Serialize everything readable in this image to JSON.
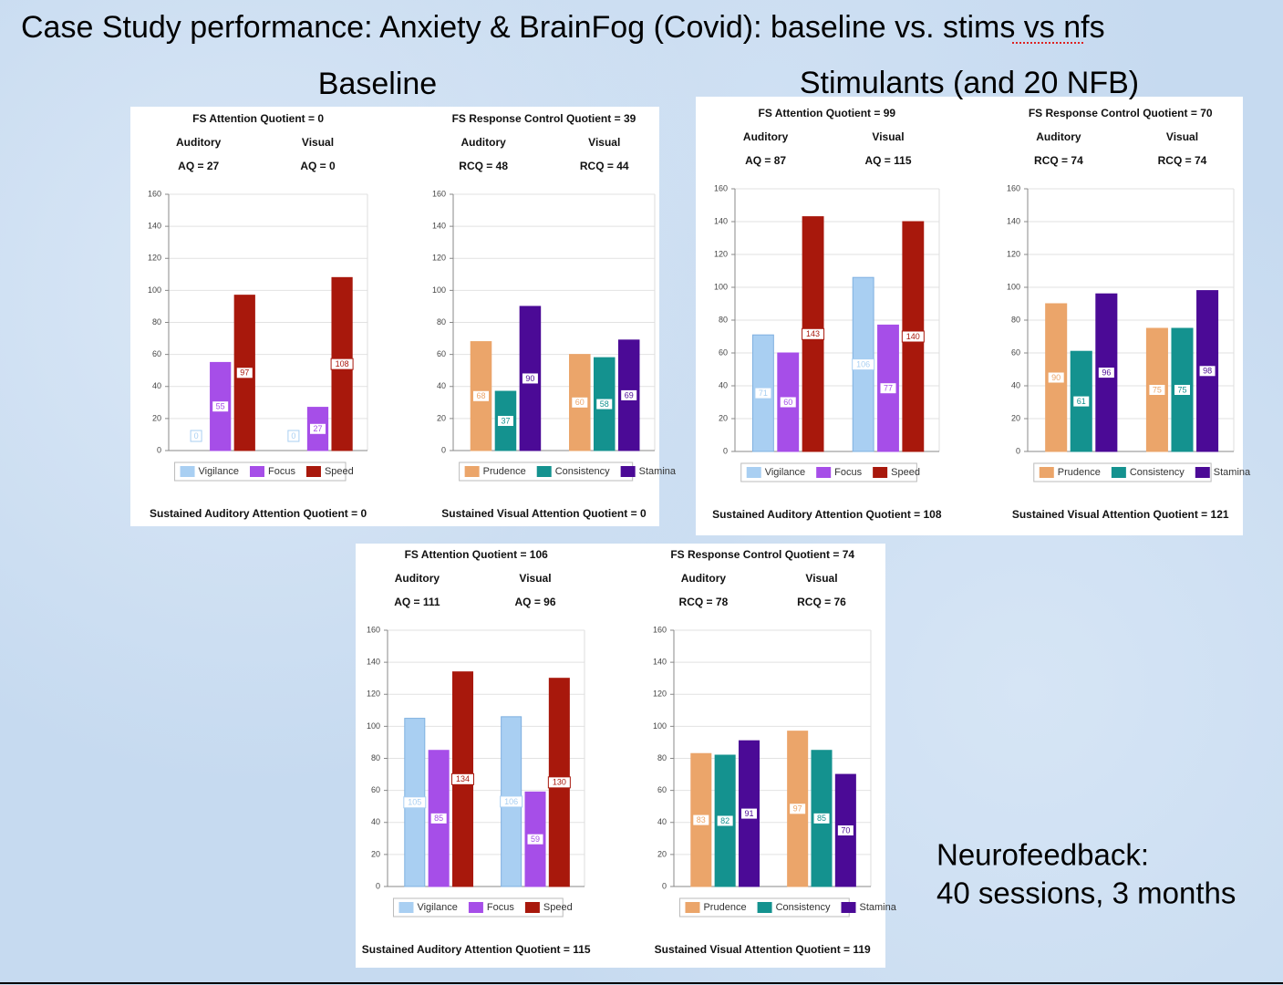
{
  "title": "Case Study performance:  Anxiety & BrainFog (Covid): baseline vs. stims vs nfs",
  "section_labels": [
    "Baseline",
    "Stimulants (and 20 NFB)"
  ],
  "note": [
    "Neurofeedback:",
    "40 sessions, 3 months"
  ],
  "chart_data": [
    {
      "type": "bar",
      "title": "FS Attention Quotient = 0",
      "group_labels": [
        "Auditory",
        "Visual"
      ],
      "group_scores": [
        "AQ = 27",
        "AQ = 0"
      ],
      "footer": "Sustained Auditory Attention Quotient = 0",
      "ylim": [
        0,
        160
      ],
      "yticks": [
        0,
        20,
        40,
        60,
        80,
        100,
        120,
        140,
        160
      ],
      "grid": true,
      "series": [
        {
          "name": "Vigilance",
          "color": "#a9cff2",
          "values": [
            0,
            0
          ]
        },
        {
          "name": "Focus",
          "color": "#a64ee8",
          "values": [
            55,
            27
          ]
        },
        {
          "name": "Speed",
          "color": "#a8180c",
          "values": [
            97,
            108
          ]
        }
      ]
    },
    {
      "type": "bar",
      "title": "FS Response Control Quotient = 39",
      "group_labels": [
        "Auditory",
        "Visual"
      ],
      "group_scores": [
        "RCQ = 48",
        "RCQ = 44"
      ],
      "footer": "Sustained Visual Attention Quotient = 0",
      "ylim": [
        0,
        160
      ],
      "yticks": [
        0,
        20,
        40,
        60,
        80,
        100,
        120,
        140,
        160
      ],
      "grid": true,
      "series": [
        {
          "name": "Prudence",
          "color": "#eba56a",
          "values": [
            68,
            60
          ]
        },
        {
          "name": "Consistency",
          "color": "#14928f",
          "values": [
            37,
            58
          ]
        },
        {
          "name": "Stamina",
          "color": "#4b0a96",
          "values": [
            90,
            69
          ]
        }
      ]
    },
    {
      "type": "bar",
      "title": "FS Attention Quotient = 99",
      "group_labels": [
        "Auditory",
        "Visual"
      ],
      "group_scores": [
        "AQ = 87",
        "AQ = 115"
      ],
      "footer": "Sustained Auditory Attention Quotient = 108",
      "ylim": [
        0,
        160
      ],
      "yticks": [
        0,
        20,
        40,
        60,
        80,
        100,
        120,
        140,
        160
      ],
      "grid": true,
      "series": [
        {
          "name": "Vigilance",
          "color": "#a9cff2",
          "values": [
            71,
            106
          ]
        },
        {
          "name": "Focus",
          "color": "#a64ee8",
          "values": [
            60,
            77
          ]
        },
        {
          "name": "Speed",
          "color": "#a8180c",
          "values": [
            143,
            140
          ]
        }
      ]
    },
    {
      "type": "bar",
      "title": "FS Response Control Quotient = 70",
      "group_labels": [
        "Auditory",
        "Visual"
      ],
      "group_scores": [
        "RCQ = 74",
        "RCQ = 74"
      ],
      "footer": "Sustained Visual Attention Quotient = 121",
      "ylim": [
        0,
        160
      ],
      "yticks": [
        0,
        20,
        40,
        60,
        80,
        100,
        120,
        140,
        160
      ],
      "grid": true,
      "series": [
        {
          "name": "Prudence",
          "color": "#eba56a",
          "values": [
            90,
            75
          ]
        },
        {
          "name": "Consistency",
          "color": "#14928f",
          "values": [
            61,
            75
          ]
        },
        {
          "name": "Stamina",
          "color": "#4b0a96",
          "values": [
            96,
            98
          ]
        }
      ]
    },
    {
      "type": "bar",
      "title": "FS Attention Quotient = 106",
      "group_labels": [
        "Auditory",
        "Visual"
      ],
      "group_scores": [
        "AQ = 111",
        "AQ = 96"
      ],
      "footer": "Sustained Auditory Attention Quotient = 115",
      "ylim": [
        0,
        160
      ],
      "yticks": [
        0,
        20,
        40,
        60,
        80,
        100,
        120,
        140,
        160
      ],
      "grid": true,
      "series": [
        {
          "name": "Vigilance",
          "color": "#a9cff2",
          "values": [
            105,
            106
          ]
        },
        {
          "name": "Focus",
          "color": "#a64ee8",
          "values": [
            85,
            59
          ]
        },
        {
          "name": "Speed",
          "color": "#a8180c",
          "values": [
            134,
            130
          ]
        }
      ]
    },
    {
      "type": "bar",
      "title": "FS Response Control Quotient = 74",
      "group_labels": [
        "Auditory",
        "Visual"
      ],
      "group_scores": [
        "RCQ = 78",
        "RCQ = 76"
      ],
      "footer": "Sustained Visual Attention Quotient = 119",
      "ylim": [
        0,
        160
      ],
      "yticks": [
        0,
        20,
        40,
        60,
        80,
        100,
        120,
        140,
        160
      ],
      "grid": true,
      "series": [
        {
          "name": "Prudence",
          "color": "#eba56a",
          "values": [
            83,
            97
          ]
        },
        {
          "name": "Consistency",
          "color": "#14928f",
          "values": [
            82,
            85
          ]
        },
        {
          "name": "Stamina",
          "color": "#4b0a96",
          "values": [
            91,
            70
          ]
        }
      ]
    }
  ]
}
